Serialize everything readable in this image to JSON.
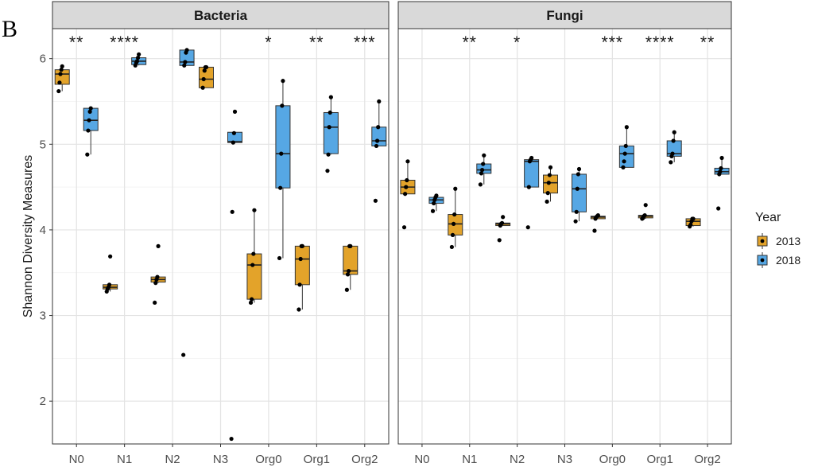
{
  "figure_tag": "B",
  "colors": {
    "2013": "#e3a32a",
    "2018": "#56a7e4"
  },
  "chart_data": {
    "type": "box",
    "ylabel": "Shannon Diversity Measures",
    "ylim": [
      1.5,
      6.35
    ],
    "y_ticks": [
      2,
      3,
      4,
      5,
      6
    ],
    "categories": [
      "N0",
      "N1",
      "N2",
      "N3",
      "Org0",
      "Org1",
      "Org2"
    ],
    "legend": {
      "title": "Year",
      "entries": [
        "2013",
        "2018"
      ],
      "position": "right"
    },
    "grid": true,
    "panels": [
      {
        "name": "Bacteria",
        "significance": [
          "**",
          "****",
          "",
          "",
          "*",
          "**",
          "***"
        ],
        "groups": [
          {
            "category": "N0",
            "year": "2013",
            "q1": 5.7,
            "median": 5.82,
            "q3": 5.87,
            "whisker_low": 5.62,
            "whisker_high": 5.91,
            "points": [
              5.62,
              5.72,
              5.82,
              5.87,
              5.91
            ]
          },
          {
            "category": "N0",
            "year": "2018",
            "q1": 5.16,
            "median": 5.28,
            "q3": 5.42,
            "whisker_low": 4.88,
            "whisker_high": 5.42,
            "points": [
              4.88,
              5.16,
              5.28,
              5.38,
              5.42
            ]
          },
          {
            "category": "N1",
            "year": "2013",
            "q1": 3.31,
            "median": 3.33,
            "q3": 3.36,
            "whisker_low": 3.28,
            "whisker_high": 3.36,
            "points": [
              3.28,
              3.31,
              3.33,
              3.36,
              3.69
            ]
          },
          {
            "category": "N1",
            "year": "2018",
            "q1": 5.93,
            "median": 5.97,
            "q3": 6.01,
            "whisker_low": 5.92,
            "whisker_high": 6.05,
            "points": [
              5.92,
              5.95,
              5.97,
              6.01,
              6.05
            ]
          },
          {
            "category": "N2",
            "year": "2013",
            "q1": 3.39,
            "median": 3.42,
            "q3": 3.45,
            "whisker_low": 3.38,
            "whisker_high": 3.45,
            "points": [
              3.15,
              3.38,
              3.42,
              3.45,
              3.81
            ]
          },
          {
            "category": "N2",
            "year": "2018",
            "q1": 5.92,
            "median": 5.96,
            "q3": 6.1,
            "whisker_low": 5.92,
            "whisker_high": 6.1,
            "points": [
              2.54,
              5.92,
              5.96,
              6.07,
              6.1
            ]
          },
          {
            "category": "N3",
            "year": "2013",
            "q1": 5.66,
            "median": 5.76,
            "q3": 5.9,
            "whisker_low": 5.66,
            "whisker_high": 5.9,
            "points": [
              5.66,
              5.76,
              5.86,
              5.9,
              5.9
            ]
          },
          {
            "category": "N3",
            "year": "2018",
            "q1": 5.02,
            "median": 5.03,
            "q3": 5.14,
            "whisker_low": 5.01,
            "whisker_high": 5.14,
            "points": [
              1.56,
              4.21,
              5.02,
              5.13,
              5.38
            ]
          },
          {
            "category": "Org0",
            "year": "2013",
            "q1": 3.19,
            "median": 3.59,
            "q3": 3.72,
            "whisker_low": 3.15,
            "whisker_high": 4.23,
            "points": [
              3.15,
              3.19,
              3.59,
              3.72,
              4.23
            ]
          },
          {
            "category": "Org0",
            "year": "2018",
            "q1": 4.49,
            "median": 4.89,
            "q3": 5.45,
            "whisker_low": 3.67,
            "whisker_high": 5.74,
            "points": [
              3.67,
              4.49,
              4.89,
              5.45,
              5.74
            ]
          },
          {
            "category": "Org1",
            "year": "2013",
            "q1": 3.36,
            "median": 3.66,
            "q3": 3.81,
            "whisker_low": 3.07,
            "whisker_high": 3.81,
            "points": [
              3.07,
              3.36,
              3.66,
              3.81,
              3.81
            ]
          },
          {
            "category": "Org1",
            "year": "2018",
            "q1": 4.89,
            "median": 5.2,
            "q3": 5.37,
            "whisker_low": 4.88,
            "whisker_high": 5.55,
            "points": [
              4.69,
              4.88,
              5.2,
              5.37,
              5.55
            ]
          },
          {
            "category": "Org2",
            "year": "2013",
            "q1": 3.48,
            "median": 3.52,
            "q3": 3.81,
            "whisker_low": 3.3,
            "whisker_high": 3.81,
            "points": [
              3.3,
              3.48,
              3.52,
              3.81,
              3.81
            ]
          },
          {
            "category": "Org2",
            "year": "2018",
            "q1": 4.98,
            "median": 5.04,
            "q3": 5.2,
            "whisker_low": 4.98,
            "whisker_high": 5.5,
            "points": [
              4.34,
              4.98,
              5.04,
              5.2,
              5.5
            ]
          }
        ]
      },
      {
        "name": "Fungi",
        "significance": [
          "",
          "**",
          "*",
          "",
          "***",
          "****",
          "**"
        ],
        "groups": [
          {
            "category": "N0",
            "year": "2013",
            "q1": 4.42,
            "median": 4.5,
            "q3": 4.58,
            "whisker_low": 4.42,
            "whisker_high": 4.8,
            "points": [
              4.03,
              4.42,
              4.5,
              4.58,
              4.8
            ]
          },
          {
            "category": "N0",
            "year": "2018",
            "q1": 4.31,
            "median": 4.35,
            "q3": 4.38,
            "whisker_low": 4.22,
            "whisker_high": 4.4,
            "points": [
              4.22,
              4.31,
              4.35,
              4.38,
              4.4
            ]
          },
          {
            "category": "N1",
            "year": "2013",
            "q1": 3.94,
            "median": 4.07,
            "q3": 4.18,
            "whisker_low": 3.8,
            "whisker_high": 4.48,
            "points": [
              3.8,
              3.94,
              4.07,
              4.18,
              4.48
            ]
          },
          {
            "category": "N1",
            "year": "2018",
            "q1": 4.66,
            "median": 4.7,
            "q3": 4.77,
            "whisker_low": 4.53,
            "whisker_high": 4.87,
            "points": [
              4.53,
              4.66,
              4.7,
              4.77,
              4.87
            ]
          },
          {
            "category": "N2",
            "year": "2013",
            "q1": 4.05,
            "median": 4.07,
            "q3": 4.08,
            "whisker_low": 4.05,
            "whisker_high": 4.08,
            "points": [
              3.88,
              4.05,
              4.07,
              4.08,
              4.15
            ]
          },
          {
            "category": "N2",
            "year": "2018",
            "q1": 4.5,
            "median": 4.8,
            "q3": 4.82,
            "whisker_low": 4.5,
            "whisker_high": 4.82,
            "points": [
              4.03,
              4.5,
              4.8,
              4.82,
              4.84
            ]
          },
          {
            "category": "N3",
            "year": "2013",
            "q1": 4.43,
            "median": 4.55,
            "q3": 4.64,
            "whisker_low": 4.33,
            "whisker_high": 4.73,
            "points": [
              4.33,
              4.43,
              4.55,
              4.64,
              4.73
            ]
          },
          {
            "category": "N3",
            "year": "2018",
            "q1": 4.21,
            "median": 4.48,
            "q3": 4.65,
            "whisker_low": 4.1,
            "whisker_high": 4.71,
            "points": [
              4.1,
              4.21,
              4.48,
              4.65,
              4.71
            ]
          },
          {
            "category": "Org0",
            "year": "2013",
            "q1": 4.13,
            "median": 4.15,
            "q3": 4.16,
            "whisker_low": 4.13,
            "whisker_high": 4.17,
            "points": [
              3.99,
              4.13,
              4.15,
              4.16,
              4.17
            ]
          },
          {
            "category": "Org0",
            "year": "2018",
            "q1": 4.73,
            "median": 4.89,
            "q3": 4.98,
            "whisker_low": 4.73,
            "whisker_high": 5.2,
            "points": [
              4.73,
              4.8,
              4.89,
              4.98,
              5.2
            ]
          },
          {
            "category": "Org1",
            "year": "2013",
            "q1": 4.14,
            "median": 4.16,
            "q3": 4.17,
            "whisker_low": 4.13,
            "whisker_high": 4.18,
            "points": [
              4.13,
              4.14,
              4.16,
              4.17,
              4.29
            ]
          },
          {
            "category": "Org1",
            "year": "2018",
            "q1": 4.86,
            "median": 4.89,
            "q3": 5.04,
            "whisker_low": 4.79,
            "whisker_high": 5.14,
            "points": [
              4.79,
              4.86,
              4.89,
              5.04,
              5.14
            ]
          },
          {
            "category": "Org2",
            "year": "2013",
            "q1": 4.05,
            "median": 4.1,
            "q3": 4.13,
            "whisker_low": 4.04,
            "whisker_high": 4.13,
            "points": [
              4.04,
              4.06,
              4.1,
              4.13,
              4.13
            ]
          },
          {
            "category": "Org2",
            "year": "2018",
            "q1": 4.65,
            "median": 4.68,
            "q3": 4.72,
            "whisker_low": 4.65,
            "whisker_high": 4.84,
            "points": [
              4.25,
              4.65,
              4.68,
              4.72,
              4.84
            ]
          }
        ]
      }
    ]
  }
}
